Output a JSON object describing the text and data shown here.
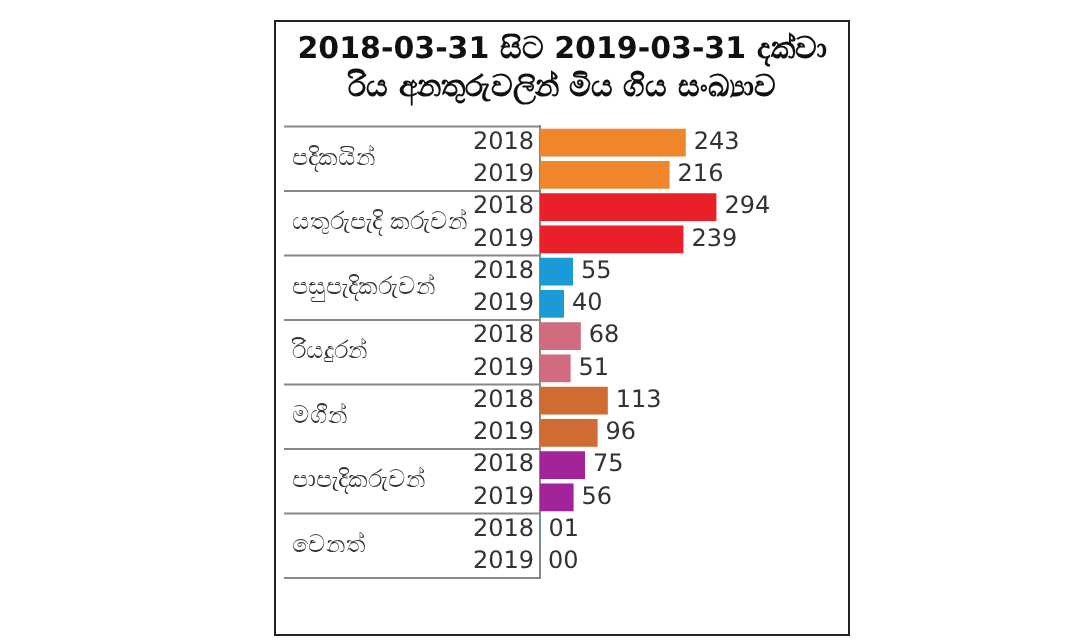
{
  "chart_data": {
    "type": "bar",
    "orientation": "horizontal",
    "title": "2018-03-31 සිට 2019-03-31 දක්වා\nරිය අනතුරුවලින් මිය ගිය සංඛ්‍යාව",
    "categories": [
      "2018",
      "2019",
      "2018",
      "2019",
      "2018",
      "2019",
      "2018",
      "2019",
      "2018",
      "2019",
      "2018",
      "2019",
      "2018",
      "2019"
    ],
    "values": [
      243,
      216,
      294,
      239,
      55,
      40,
      68,
      51,
      113,
      96,
      75,
      56,
      1,
      0
    ],
    "value_labels": [
      "243",
      "216",
      "294",
      "239",
      "55",
      "40",
      "68",
      "51",
      "113",
      "96",
      "75",
      "56",
      "01",
      "00"
    ],
    "colors": [
      "#f0862a",
      "#f0862a",
      "#e8202a",
      "#e8202a",
      "#1a9ad6",
      "#1a9ad6",
      "#d16b80",
      "#d16b80",
      "#cf6b33",
      "#cf6b33",
      "#a3239a",
      "#a3239a",
      "#5aa68a",
      "#5aa68a"
    ],
    "annotations": [
      "පදිකයින්",
      "යතුරුපැදි කරුවන්",
      "පසුපැදිකරුවන්",
      "රියදුරන්",
      "මගීන්",
      "පාපැදිකරුවන්",
      "වෙනත්"
    ],
    "tick_labels": "y",
    "grid": false,
    "legend": false
  }
}
